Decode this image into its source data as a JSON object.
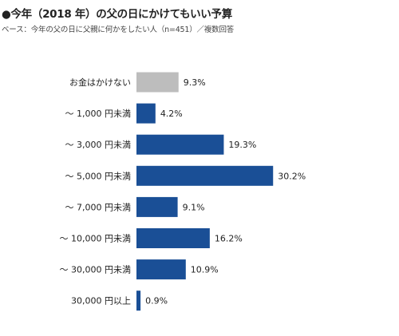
{
  "title": "●今年（2018 年）の父の日にかけてもいい予算",
  "subtitle": "ベース：今年の父の日に父親に何かをしたい人（n=451）／複数回答",
  "chart_data": {
    "type": "bar",
    "orientation": "horizontal",
    "title": "●今年（2018 年）の父の日にかけてもいい予算",
    "subtitle": "ベース：今年の父の日に父親に何かをしたい人（n=451）／複数回答",
    "categories": [
      "お金はかけない",
      "～ 1,000 円未満",
      "～ 3,000 円未満",
      "～ 5,000 円未満",
      "～ 7,000 円未満",
      "～ 10,000 円未満",
      "～ 30,000 円未満",
      "30,000 円以上"
    ],
    "values": [
      9.3,
      4.2,
      19.3,
      30.2,
      9.1,
      16.2,
      10.9,
      0.9
    ],
    "value_labels": [
      "9.3%",
      "4.2%",
      "19.3%",
      "30.2%",
      "9.1%",
      "16.2%",
      "10.9%",
      "0.9%"
    ],
    "unit": "%",
    "colors": [
      "#bdbdbd",
      "#1a4f96",
      "#1a4f96",
      "#1a4f96",
      "#1a4f96",
      "#1a4f96",
      "#1a4f96",
      "#1a4f96"
    ],
    "grid": false,
    "legend": "none"
  }
}
